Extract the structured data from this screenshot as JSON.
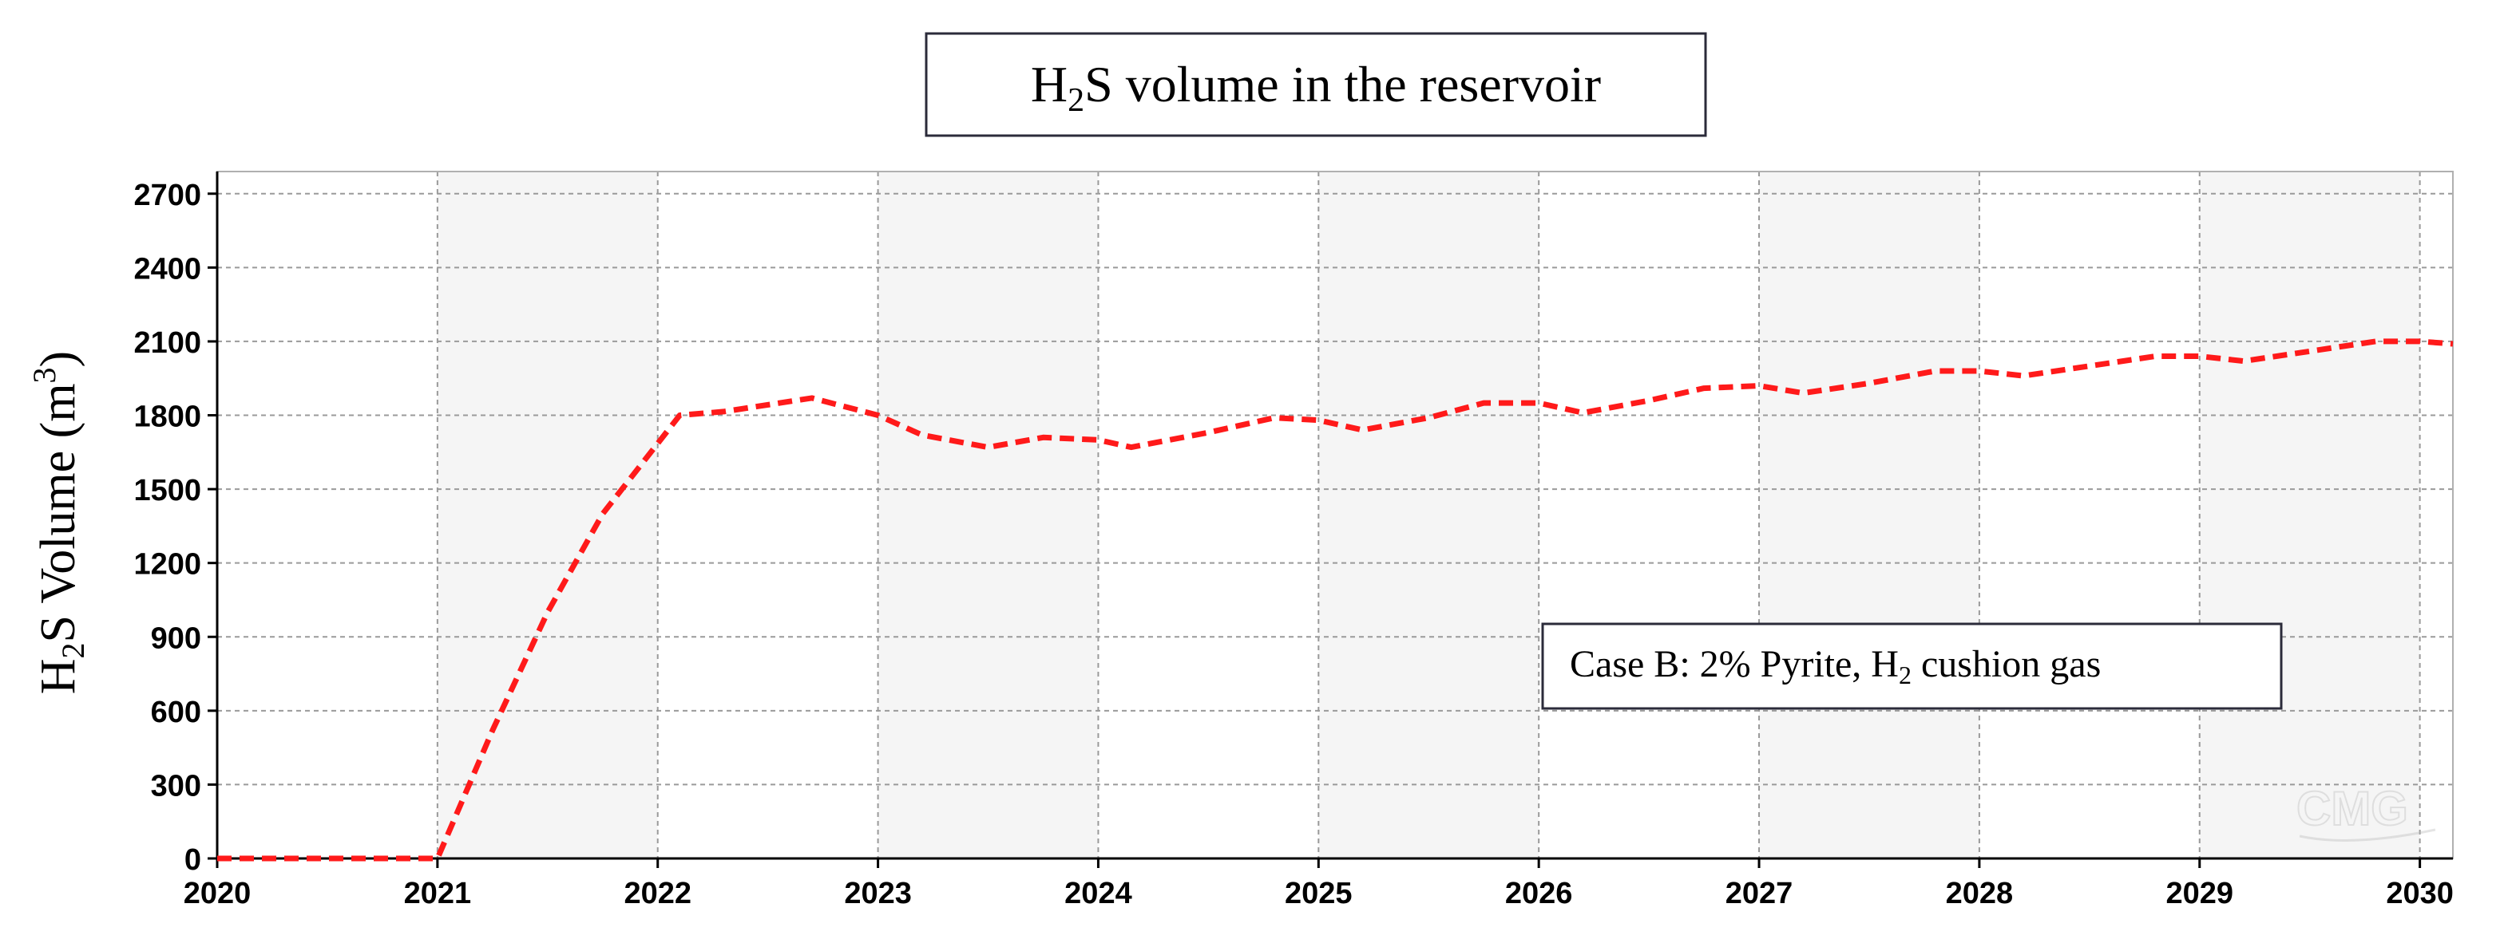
{
  "title_box": {
    "main": "H",
    "sub": "2",
    "rest": "S volume in the reservoir"
  },
  "ylabel": {
    "main": "H",
    "sub": "2",
    "mid": "S Volume (m",
    "sup": "3",
    "end": ")"
  },
  "annotation": {
    "main": "Case B: 2% Pyrite, H",
    "sub": "2",
    "rest": " cushion gas"
  },
  "watermark": "CMG",
  "colors": {
    "series": "#ff1a1a",
    "band": "#f5f5f5",
    "grid": "#9a9a9a",
    "axis": "#000000"
  },
  "chart_data": {
    "type": "line",
    "title": "H2S volume in the reservoir",
    "ylabel": "H2S Volume (m3)",
    "xlim": [
      2020,
      2030.15
    ],
    "ylim": [
      0,
      2790
    ],
    "x_ticks": [
      2020,
      2021,
      2022,
      2023,
      2024,
      2025,
      2026,
      2027,
      2028,
      2029,
      2030
    ],
    "y_ticks": [
      0,
      300,
      600,
      900,
      1200,
      1500,
      1800,
      2100,
      2400,
      2700
    ],
    "grid": true,
    "alternating_year_bands": true,
    "legend": "none",
    "series": [
      {
        "name": "Case B: 2% Pyrite, H2 cushion gas",
        "style": "dashed",
        "x": [
          2020.0,
          2021.0,
          2021.25,
          2021.5,
          2021.75,
          2022.1,
          2022.3,
          2022.7,
          2023.0,
          2023.2,
          2023.5,
          2023.75,
          2024.0,
          2024.15,
          2024.5,
          2024.8,
          2025.0,
          2025.2,
          2025.5,
          2025.75,
          2026.0,
          2026.2,
          2026.5,
          2026.75,
          2027.0,
          2027.2,
          2027.5,
          2027.8,
          2028.0,
          2028.2,
          2028.5,
          2028.8,
          2029.0,
          2029.2,
          2029.5,
          2029.8,
          2030.0,
          2030.15
        ],
        "y": [
          0,
          0,
          520,
          1000,
          1400,
          1800,
          1815,
          1870,
          1800,
          1720,
          1670,
          1710,
          1700,
          1670,
          1730,
          1790,
          1780,
          1740,
          1790,
          1850,
          1850,
          1810,
          1860,
          1910,
          1920,
          1890,
          1930,
          1980,
          1980,
          1960,
          2000,
          2040,
          2040,
          2020,
          2060,
          2100,
          2100,
          2090
        ]
      }
    ]
  }
}
